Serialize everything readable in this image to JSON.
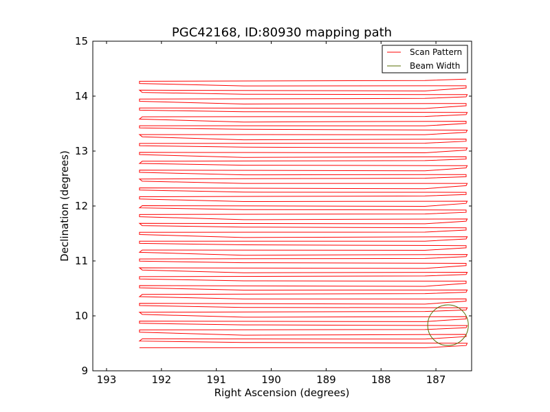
{
  "chart_data": {
    "type": "line",
    "title": "PGC42168, ID:80930 mapping path",
    "xlabel": "Right Ascension (degrees)",
    "ylabel": "Declination (degrees)",
    "xlim": [
      193.25,
      186.35
    ],
    "ylim": [
      9,
      15
    ],
    "x_inverted": true,
    "xticks": [
      193,
      192,
      191,
      190,
      189,
      188,
      187
    ],
    "yticks": [
      9,
      10,
      11,
      12,
      13,
      14,
      15
    ],
    "grid": false,
    "legend_position": "top-right",
    "scan": {
      "ra_left": 192.4,
      "ra_right": 186.45,
      "dec_start": 9.42,
      "dec_end": 14.27,
      "rows": 61
    },
    "series": [
      {
        "name": "Scan Pattern",
        "color": "#ff0000"
      },
      {
        "name": "Beam Width",
        "color": "#556b00",
        "shape": "circle",
        "center": [
          186.78,
          9.83
        ],
        "radius": 0.37
      }
    ]
  }
}
